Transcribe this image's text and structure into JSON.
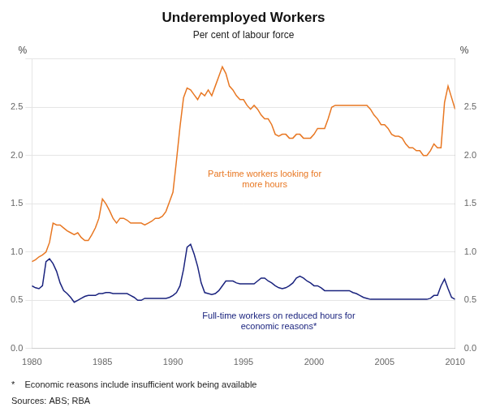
{
  "chart_data": {
    "type": "line",
    "title": "Underemployed Workers",
    "subtitle": "Per cent of labour force",
    "ylabel": "%",
    "y2label": "%",
    "footnote": "*    Economic reasons include insufficient work being available",
    "source": "Sources: ABS; RBA",
    "xlim": [
      1980,
      2010
    ],
    "xticks": [
      1980,
      1985,
      1990,
      1995,
      2000,
      2005,
      2010
    ],
    "ylim": [
      0.0,
      3.0
    ],
    "yticks": [
      {
        "value": 0.0,
        "label": "0.0"
      },
      {
        "value": 0.5,
        "label": "0.5"
      },
      {
        "value": 1.0,
        "label": "1.0"
      },
      {
        "value": 1.5,
        "label": "1.5"
      },
      {
        "value": 2.0,
        "label": "2.0"
      },
      {
        "value": 2.5,
        "label": "2.5"
      },
      {
        "value": 3.0,
        "label": null
      }
    ],
    "y2lim": [
      0.0,
      3.0
    ],
    "y2ticks": [
      {
        "value": 0.0,
        "label": "0.0"
      },
      {
        "value": 0.5,
        "label": "0.5"
      },
      {
        "value": 1.0,
        "label": "1.0"
      },
      {
        "value": 1.5,
        "label": "1.5"
      },
      {
        "value": 2.0,
        "label": "2.0"
      },
      {
        "value": 2.5,
        "label": "2.5"
      },
      {
        "value": 3.0,
        "label": null
      }
    ],
    "grid": "y",
    "annotations": [
      {
        "text": "Part-time workers looking for\nmore hours",
        "x": 1996.5,
        "y": 1.85,
        "color": "#E87722"
      },
      {
        "text": "Full-time workers on reduced hours for\neconomic reasons*",
        "x": 1997.5,
        "y": 0.38,
        "color": "#1A237E"
      }
    ],
    "x": [
      1980,
      1980.25,
      1980.5,
      1980.75,
      1981,
      1981.25,
      1981.5,
      1981.75,
      1982,
      1982.25,
      1982.5,
      1982.75,
      1983,
      1983.25,
      1983.5,
      1983.75,
      1984,
      1984.25,
      1984.5,
      1984.75,
      1985,
      1985.25,
      1985.5,
      1985.75,
      1986,
      1986.25,
      1986.5,
      1986.75,
      1987,
      1987.25,
      1987.5,
      1987.75,
      1988,
      1988.25,
      1988.5,
      1988.75,
      1989,
      1989.25,
      1989.5,
      1989.75,
      1990,
      1990.25,
      1990.5,
      1990.75,
      1991,
      1991.25,
      1991.5,
      1991.75,
      1992,
      1992.25,
      1992.5,
      1992.75,
      1993,
      1993.25,
      1993.5,
      1993.75,
      1994,
      1994.25,
      1994.5,
      1994.75,
      1995,
      1995.25,
      1995.5,
      1995.75,
      1996,
      1996.25,
      1996.5,
      1996.75,
      1997,
      1997.25,
      1997.5,
      1997.75,
      1998,
      1998.25,
      1998.5,
      1998.75,
      1999,
      1999.25,
      1999.5,
      1999.75,
      2000,
      2000.25,
      2000.5,
      2000.75,
      2001,
      2001.25,
      2001.5,
      2001.75,
      2002,
      2002.25,
      2002.5,
      2002.75,
      2003,
      2003.25,
      2003.5,
      2003.75,
      2004,
      2004.25,
      2004.5,
      2004.75,
      2005,
      2005.25,
      2005.5,
      2005.75,
      2006,
      2006.25,
      2006.5,
      2006.75,
      2007,
      2007.25,
      2007.5,
      2007.75,
      2008,
      2008.25,
      2008.5,
      2008.75,
      2009,
      2009.25,
      2009.5,
      2009.75,
      2010
    ],
    "series": [
      {
        "color": "#E87722",
        "values": [
          0.9,
          0.92,
          0.95,
          0.97,
          1.0,
          1.1,
          1.3,
          1.28,
          1.28,
          1.25,
          1.22,
          1.2,
          1.18,
          1.2,
          1.15,
          1.12,
          1.12,
          1.18,
          1.25,
          1.35,
          1.55,
          1.5,
          1.43,
          1.35,
          1.3,
          1.35,
          1.35,
          1.33,
          1.3,
          1.3,
          1.3,
          1.3,
          1.28,
          1.3,
          1.32,
          1.35,
          1.35,
          1.37,
          1.42,
          1.52,
          1.62,
          1.95,
          2.3,
          2.6,
          2.7,
          2.68,
          2.63,
          2.58,
          2.65,
          2.62,
          2.68,
          2.62,
          2.72,
          2.82,
          2.92,
          2.85,
          2.72,
          2.68,
          2.62,
          2.58,
          2.58,
          2.52,
          2.48,
          2.52,
          2.48,
          2.42,
          2.38,
          2.38,
          2.32,
          2.22,
          2.2,
          2.22,
          2.22,
          2.18,
          2.18,
          2.22,
          2.22,
          2.18,
          2.18,
          2.18,
          2.22,
          2.28,
          2.28,
          2.28,
          2.38,
          2.5,
          2.52,
          2.52,
          2.52,
          2.52,
          2.52,
          2.52,
          2.52,
          2.52,
          2.52,
          2.52,
          2.48,
          2.42,
          2.38,
          2.32,
          2.32,
          2.28,
          2.22,
          2.2,
          2.2,
          2.18,
          2.12,
          2.08,
          2.08,
          2.05,
          2.05,
          2.0,
          2.0,
          2.05,
          2.12,
          2.08,
          2.08,
          2.55,
          2.72,
          2.6,
          2.48
        ]
      },
      {
        "color": "#1A237E",
        "values": [
          0.65,
          0.63,
          0.62,
          0.65,
          0.9,
          0.93,
          0.88,
          0.8,
          0.68,
          0.6,
          0.57,
          0.53,
          0.48,
          0.5,
          0.52,
          0.54,
          0.55,
          0.55,
          0.55,
          0.57,
          0.57,
          0.58,
          0.58,
          0.57,
          0.57,
          0.57,
          0.57,
          0.57,
          0.55,
          0.53,
          0.5,
          0.5,
          0.52,
          0.52,
          0.52,
          0.52,
          0.52,
          0.52,
          0.52,
          0.53,
          0.55,
          0.58,
          0.65,
          0.82,
          1.05,
          1.08,
          0.98,
          0.85,
          0.68,
          0.58,
          0.57,
          0.56,
          0.57,
          0.6,
          0.65,
          0.7,
          0.7,
          0.7,
          0.68,
          0.67,
          0.67,
          0.67,
          0.67,
          0.67,
          0.7,
          0.73,
          0.73,
          0.7,
          0.68,
          0.65,
          0.63,
          0.62,
          0.63,
          0.65,
          0.68,
          0.73,
          0.75,
          0.73,
          0.7,
          0.68,
          0.65,
          0.65,
          0.63,
          0.6,
          0.6,
          0.6,
          0.6,
          0.6,
          0.6,
          0.6,
          0.6,
          0.58,
          0.57,
          0.55,
          0.53,
          0.52,
          0.51,
          0.51,
          0.51,
          0.51,
          0.51,
          0.51,
          0.51,
          0.51,
          0.51,
          0.51,
          0.51,
          0.51,
          0.51,
          0.51,
          0.51,
          0.51,
          0.51,
          0.52,
          0.55,
          0.55,
          0.65,
          0.72,
          0.62,
          0.53,
          0.51
        ]
      }
    ]
  }
}
